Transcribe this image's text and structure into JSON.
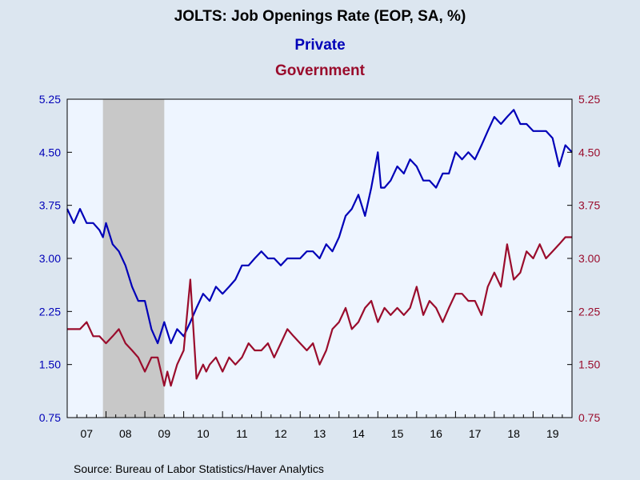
{
  "chart_data": {
    "type": "line",
    "title": "JOLTS: Job Openings Rate (EOP, SA, %)",
    "source": "Source:  Bureau of Labor Statistics/Haver Analytics",
    "x_range": [
      2007.0,
      2020.0
    ],
    "xtick_labels": [
      "07",
      "08",
      "09",
      "10",
      "11",
      "12",
      "13",
      "14",
      "15",
      "16",
      "17",
      "18",
      "19"
    ],
    "y_left": {
      "ylim": [
        0.75,
        5.25
      ],
      "ticks": [
        "0.75",
        "1.50",
        "2.25",
        "3.00",
        "3.75",
        "4.50",
        "5.25"
      ]
    },
    "y_right": {
      "ylim": [
        0.75,
        5.25
      ],
      "ticks": [
        "0.75",
        "1.50",
        "2.25",
        "3.00",
        "3.75",
        "4.50",
        "5.25"
      ]
    },
    "recession_shade": [
      2007.92,
      2009.5
    ],
    "grid": false,
    "legend_placement": "top-center",
    "colors": {
      "private": "#0000b8",
      "government": "#9a0c2c",
      "background": "#dce6f0",
      "plot_bg": "#eef5ff",
      "shade": "#c8c8c8"
    },
    "series": [
      {
        "name": "Private",
        "x": [
          2007.0,
          2007.17,
          2007.33,
          2007.5,
          2007.67,
          2007.83,
          2007.92,
          2008.0,
          2008.17,
          2008.33,
          2008.5,
          2008.67,
          2008.83,
          2009.0,
          2009.17,
          2009.33,
          2009.5,
          2009.67,
          2009.83,
          2010.0,
          2010.17,
          2010.33,
          2010.5,
          2010.67,
          2010.83,
          2011.0,
          2011.17,
          2011.33,
          2011.5,
          2011.67,
          2011.83,
          2012.0,
          2012.17,
          2012.33,
          2012.5,
          2012.67,
          2012.83,
          2013.0,
          2013.17,
          2013.33,
          2013.5,
          2013.67,
          2013.83,
          2014.0,
          2014.17,
          2014.33,
          2014.5,
          2014.67,
          2014.83,
          2015.0,
          2015.08,
          2015.17,
          2015.33,
          2015.5,
          2015.67,
          2015.83,
          2016.0,
          2016.17,
          2016.33,
          2016.5,
          2016.67,
          2016.83,
          2017.0,
          2017.17,
          2017.33,
          2017.5,
          2017.67,
          2017.83,
          2018.0,
          2018.17,
          2018.33,
          2018.5,
          2018.67,
          2018.83,
          2019.0,
          2019.17,
          2019.33,
          2019.5,
          2019.67,
          2019.83,
          2020.0
        ],
        "values": [
          3.7,
          3.5,
          3.7,
          3.5,
          3.5,
          3.4,
          3.3,
          3.5,
          3.2,
          3.1,
          2.9,
          2.6,
          2.4,
          2.4,
          2.0,
          1.8,
          2.1,
          1.8,
          2.0,
          1.9,
          2.1,
          2.3,
          2.5,
          2.4,
          2.6,
          2.5,
          2.6,
          2.7,
          2.9,
          2.9,
          3.0,
          3.1,
          3.0,
          3.0,
          2.9,
          3.0,
          3.0,
          3.0,
          3.1,
          3.1,
          3.0,
          3.2,
          3.1,
          3.3,
          3.6,
          3.7,
          3.9,
          3.6,
          4.0,
          4.5,
          4.0,
          4.0,
          4.1,
          4.3,
          4.2,
          4.4,
          4.3,
          4.1,
          4.1,
          4.0,
          4.2,
          4.2,
          4.5,
          4.4,
          4.5,
          4.4,
          4.6,
          4.8,
          5.0,
          4.9,
          5.0,
          5.1,
          4.9,
          4.9,
          4.8,
          4.8,
          4.8,
          4.7,
          4.3,
          4.6,
          4.5
        ]
      },
      {
        "name": "Government",
        "x": [
          2007.0,
          2007.17,
          2007.33,
          2007.5,
          2007.67,
          2007.83,
          2008.0,
          2008.17,
          2008.33,
          2008.5,
          2008.67,
          2008.83,
          2009.0,
          2009.17,
          2009.33,
          2009.5,
          2009.58,
          2009.67,
          2009.83,
          2010.0,
          2010.17,
          2010.33,
          2010.5,
          2010.58,
          2010.67,
          2010.83,
          2011.0,
          2011.17,
          2011.33,
          2011.5,
          2011.67,
          2011.83,
          2012.0,
          2012.17,
          2012.33,
          2012.5,
          2012.67,
          2012.83,
          2013.0,
          2013.17,
          2013.33,
          2013.5,
          2013.67,
          2013.83,
          2014.0,
          2014.17,
          2014.33,
          2014.5,
          2014.67,
          2014.83,
          2015.0,
          2015.17,
          2015.33,
          2015.5,
          2015.67,
          2015.83,
          2016.0,
          2016.17,
          2016.33,
          2016.5,
          2016.67,
          2016.83,
          2017.0,
          2017.17,
          2017.33,
          2017.5,
          2017.67,
          2017.83,
          2018.0,
          2018.17,
          2018.33,
          2018.5,
          2018.67,
          2018.83,
          2019.0,
          2019.17,
          2019.33,
          2019.5,
          2019.67,
          2019.83,
          2020.0
        ],
        "values": [
          2.0,
          2.0,
          2.0,
          2.1,
          1.9,
          1.9,
          1.8,
          1.9,
          2.0,
          1.8,
          1.7,
          1.6,
          1.4,
          1.6,
          1.6,
          1.2,
          1.4,
          1.2,
          1.5,
          1.7,
          2.7,
          1.3,
          1.5,
          1.4,
          1.5,
          1.6,
          1.4,
          1.6,
          1.5,
          1.6,
          1.8,
          1.7,
          1.7,
          1.8,
          1.6,
          1.8,
          2.0,
          1.9,
          1.8,
          1.7,
          1.8,
          1.5,
          1.7,
          2.0,
          2.1,
          2.3,
          2.0,
          2.1,
          2.3,
          2.4,
          2.1,
          2.3,
          2.2,
          2.3,
          2.2,
          2.3,
          2.6,
          2.2,
          2.4,
          2.3,
          2.1,
          2.3,
          2.5,
          2.5,
          2.4,
          2.4,
          2.2,
          2.6,
          2.8,
          2.6,
          3.2,
          2.7,
          2.8,
          3.1,
          3.0,
          3.2,
          3.0,
          3.1,
          3.2,
          3.3,
          3.3
        ]
      }
    ]
  }
}
